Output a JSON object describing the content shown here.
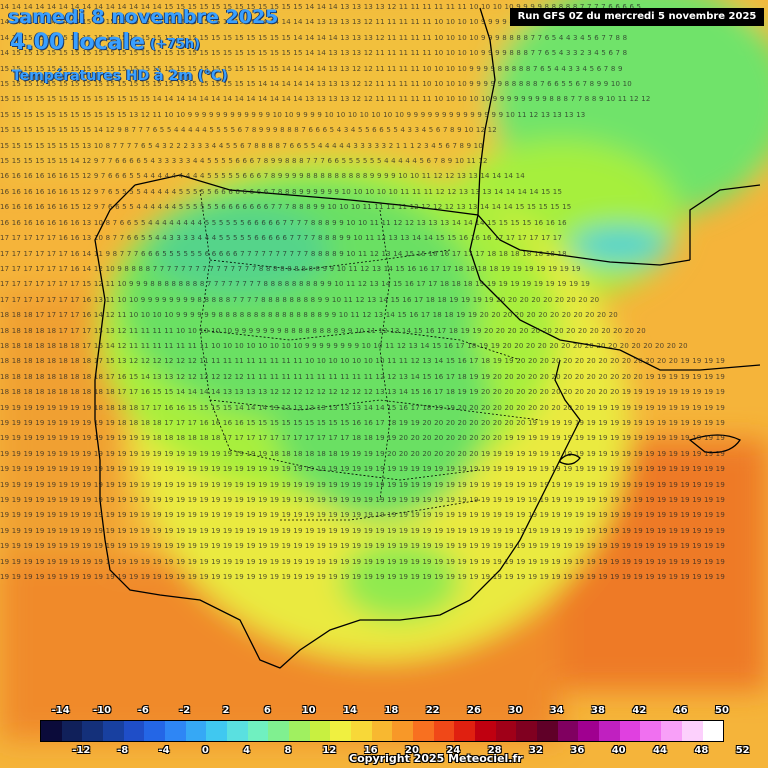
{
  "header": {
    "date": "samedi 8 novembre 2025",
    "time": "4.00 locale",
    "offset": "(+75h)",
    "parameter": "Températures HD à 2m (°C)",
    "run": "Run GFS 0Z du mercredi 5 novembre 2025"
  },
  "legend": {
    "top_labels": [
      "-14",
      "-10",
      "-6",
      "-2",
      "2",
      "6",
      "10",
      "14",
      "18",
      "22",
      "26",
      "30",
      "34",
      "38",
      "42",
      "46",
      "50"
    ],
    "bottom_labels": [
      "-12",
      "-8",
      "-4",
      "0",
      "4",
      "8",
      "12",
      "16",
      "20",
      "24",
      "28",
      "32",
      "36",
      "40",
      "44",
      "48",
      "52"
    ],
    "colors": [
      "#0b0b3a",
      "#10205a",
      "#14307a",
      "#1840a0",
      "#1f4ec8",
      "#2466e6",
      "#2e86f5",
      "#36a8f5",
      "#40c8f0",
      "#5ae0e0",
      "#70f0c0",
      "#80f090",
      "#a0f060",
      "#c8f040",
      "#f0f040",
      "#f8d838",
      "#f8b830",
      "#f89828",
      "#f87020",
      "#f04818",
      "#e02010",
      "#c00010",
      "#a00018",
      "#800020",
      "#600028",
      "#800060",
      "#a00090",
      "#c020c0",
      "#e040e0",
      "#f070f0",
      "#f8a0f8",
      "#fcd0fc",
      "#ffffff"
    ]
  },
  "map_colors": {
    "sea_warm": "#f0a030",
    "sea_hot": "#f07a28",
    "land_cool": "#a6ef3c",
    "land_cold": "#62e06a",
    "land_coldest": "#40c8d8",
    "land_mild": "#f0e040"
  },
  "grid_temps": {
    "rows": [
      "14 14 14 14 14 14 14 14 14 14 14 14 14 14 15 15 15 15 15 15 15 15 15 15 15 15 14 14 14 13 13 13 13 12 11 11 11 11 11 11 10 10 10 10 9 9 9 9 8 8 8 8 8 7 7 7 7 6 6 6 6 5",
      "14 14 14 14 14 14 14 15 15 15 15 15 15 15 15 15 15 15 15 15 15 15 14 14 14 14 14 13 13 13 13 12 11 11 11 11 11 10 10 10 10 9 9 9 9 8 8 8 7 7 5 5 4 4 4 5 5 6 6 7 7 7",
      "14 14 15 15 15 15 15 15 15 15 15 15 15 15 15 15 15 15 15 15 15 15 15 15 15 14 14 14 14 13 13 13 12 11 11 11 11 10 10 10 10 9 9 9 8 8 8 8 7 7 6 5 4 4 3 4 5 6 7 7 8 8",
      "14 15 15 15 15 15 15 15 15 15 15 15 15 15 15 15 15 15 15 15 15 15 15 15 15 15 14 14 13 13 13 12 11 11 11 11 11 10 10 10 10 9 9 9 9 8 8 8 7 7 6 5 4 3 3 2 3 4 5 6 7 8",
      "15 15 15 15 15 15 15 15 15 15 15 15 15 15 15 15 15 15 15 15 15 15 15 15 14 14 14 14 13 13 12 12 11 11 11 11 10 10 10 10 9 9 9 9 8 8 8 8 8 7 6 5 4 4 3 3 4 5 6 7 8 9",
      "15 15 15 15 15 15 15 15 15 15 15 15 15 15 15 15 15 15 15 15 15 15 14 14 14 14 14 13 13 13 12 12 11 11 11 11 10 10 10 10 9 9 9 9 9 8 8 8 8 8 7 6 6 5 5 6 7 8 9 9 10 10",
      "15 15 15 15 15 15 15 15 15 15 15 15 15 14 14 14 14 14 14 14 14 14 14 14 14 14 13 13 13 13 12 12 11 11 11 11 11 10 10 10 10 10 9 9 9 9 9 9 9 9 8 8 8 7 7 8 8 9 10 11 12 12",
      "15 15 15 15 15 15 15 15 15 15 15 13 12 11 10 10 9 9 9 9 9 9 9 9 9 9 9 9 10 10 9 9 9 9 10 10 10 10 10 10 10 9 9 9 9 9 9 9 9 9 9 9 9 9 9 10 11 12 13 13 13 13",
      "15 15 15 15 15 15 15 15 14 12 9 8 7 7 7 6 5 5 4 4 4 4 4 5 5 5 5 6 7 8 9 9 9 8 8 8 7 6 6 6 5 4 3 4 5 5 6 6 5 5 4 3 3 4 5 6 7 8 9 10 12 12",
      "15 15 15 15 15 15 15 13 10 8 7 7 7 7 6 5 4 3 2 2 2 3 3 3 4 4 5 5 6 7 8 8 8 8 7 6 6 5 5 4 4 4 4 4 3 3 3 3 3 2 1 1 1 2 3 4 5 6 7 8 9 10",
      "15 15 15 15 15 15 14 12 9 7 7 6 6 6 6 5 4 3 3 3 3 3 4 4 5 5 5 5 6 6 6 7 8 9 9 8 8 8 7 7 7 6 6 5 5 5 5 5 5 4 4 4 4 4 5 6 7 8 9 10 11 12",
      "16 16 16 16 16 16 15 12 9 7 6 6 6 5 5 4 4 4 4 4 4 4 4 4 5 5 5 5 5 6 6 6 7 8 9 9 9 9 8 8 8 8 8 8 8 8 8 9 9 9 9 10 10 11 12 12 13 13 14 14 14 14",
      "16 16 16 16 16 16 15 12 9 7 6 5 5 5 5 4 4 4 4 4 5 5 5 5 5 6 6 6 6 6 6 6 6 7 8 8 8 9 9 9 9 9 9 10 10 10 10 10 11 11 11 12 12 13 13 13 14 14 14 14 15 15",
      "16 16 16 16 16 16 15 12 9 7 6 6 5 5 4 4 4 4 4 4 5 5 5 5 5 5 6 6 6 6 6 6 6 7 7 7 8 8 8 9 9 10 10 10 11 11 11 11 12 12 12 12 13 13 14 14 14 15 15 15 15 15",
      "16 16 16 16 16 16 16 13 10 8 7 6 6 5 5 4 4 4 4 4 4 4 4 5 5 5 5 5 5 6 6 6 6 6 7 7 7 7 8 8 8 9 9 10 10 11 11 12 12 13 13 13 14 14 14 15 15 15 15 16 16 16",
      "17 17 17 17 17 16 16 13 10 8 7 7 6 6 5 5 4 4 3 3 3 3 4 4 4 5 5 5 5 5 6 6 6 6 6 7 7 7 7 8 8 8 9 9 10 11 12 13 13 14 14 15 15 16 16 16 17 17 17 17 17 17",
      "17 17 17 17 17 17 16 14 11 9 8 7 7 7 6 6 6 5 5 5 5 5 5 6 6 6 6 6 7 7 7 7 7 7 7 7 7 7 8 8 8 8 9 10 11 12 13 14 15 15 16 16 17 17 17 18 18 18 18 18 18 18",
      "17 17 17 17 17 17 16 14 12 10 9 8 8 8 8 7 7 7 7 7 7 7 7 7 7 7 7 7 7 7 8 8 8 8 8 8 8 8 8 9 9 10 11 12 13 14 15 16 16 17 17 18 18 18 18 19 19 19 19 19 19 19",
      "17 17 17 17 17 17 17 15 12 11 10 9 9 9 8 8 8 8 8 8 8 8 7 7 7 7 7 7 7 7 8 8 8 8 8 8 8 8 9 9 10 11 12 13 14 15 16 17 17 18 18 18 19 19 19 19 19 19 19 19 19 19",
      "17 17 17 17 17 17 17 16 13 11 10 10 9 9 9 9 9 9 9 9 8 8 8 8 8 7 7 7 7 8 8 8 8 8 8 8 8 9 9 10 11 12 13 14 15 16 17 18 18 19 19 19 19 20 20 20 20 20 20 20 20 20",
      "18 18 18 17 17 17 17 16 14 12 11 10 10 10 10 9 9 9 9 9 9 8 8 8 8 8 8 8 8 8 8 8 8 8 8 8 9 9 10 11 12 13 14 15 16 17 18 18 19 19 20 20 20 20 20 20 20 20 20 20 20 20",
      "18 18 18 18 18 17 17 17 15 13 12 11 11 11 11 10 10 10 10 10 9 9 9 9 9 9 9 8 8 8 8 8 8 8 8 9 9 10 11 12 13 14 15 16 17 18 19 19 20 20 20 20 20 20 20 20 20 20 20 20 20 20",
      "18 18 18 18 18 18 18 17 16 14 12 11 11 11 11 11 11 11 10 10 10 10 10 10 10 10 9 9 9 9 9 9 9 9 10 10 11 12 13 14 15 16 17 18 19 19 20 20 20 20 20 20 20 20 20 20 20 20 20 20 20 20",
      "18 18 18 18 18 18 18 18 17 15 13 12 12 12 12 12 12 11 11 11 11 11 11 11 11 11 10 10 10 10 10 10 10 11 11 12 13 14 15 16 17 18 19 19 20 20 20 20 20 20 20 20 20 20 20 20 20 20 19 19 19 19",
      "18 18 18 18 18 18 18 18 18 17 16 15 14 13 13 12 12 12 12 12 12 11 11 11 11 11 11 11 11 11 11 11 12 12 13 14 15 16 17 18 19 19 20 20 20 20 20 20 20 20 20 20 20 20 20 19 19 19 19 19 19 19",
      "18 18 18 18 18 18 18 18 18 18 17 17 16 15 15 14 14 14 14 13 13 13 13 12 12 12 12 12 12 12 12 12 13 13 14 15 16 17 18 19 19 20 20 20 20 20 20 20 20 20 20 20 20 19 19 19 19 19 19 19 19 19",
      "19 19 19 19 19 19 19 19 18 18 18 18 17 17 16 16 15 15 15 15 14 14 14 13 13 13 13 13 13 13 13 14 14 15 16 17 18 19 19 20 20 20 20 20 20 20 20 20 20 20 19 19 19 19 19 19 19 19 19 19 19 19",
      "19 19 19 19 19 19 19 19 19 19 18 18 18 18 17 17 17 16 16 16 16 15 15 15 15 15 15 15 15 15 16 16 17 18 19 19 20 20 20 20 20 20 20 20 20 19 19 19 19 19 19 19 19 19 19 19 19 19 19 19 19 19",
      "19 19 19 19 19 19 19 19 19 19 19 19 19 18 18 18 18 18 18 17 17 17 17 17 17 17 17 17 17 17 18 18 19 19 20 20 20 20 20 20 20 20 20 19 19 19 19 19 19 19 19 19 19 19 19 19 19 19 19 19 19 19",
      "19 19 19 19 19 19 19 19 19 19 19 19 19 19 19 19 19 19 19 19 19 19 19 18 18 18 18 18 18 19 19 19 19 20 20 20 20 20 20 20 20 19 19 19 19 19 19 19 19 19 19 19 19 19 19 19 19 19 19 19 19 19",
      "19 19 19 19 19 19 19 19 19 19 19 19 19 19 19 19 19 19 19 19 19 19 19 19 19 19 19 19 19 19 19 19 19 19 19 19 19 19 19 19 19 19 19 19 19 19 19 19 19 19 19 19 19 19 19 19 19 19 19 19 19 19",
      "19 19 19 19 19 19 19 19 19 19 19 19 19 19 19 19 19 19 19 19 19 19 19 19 19 19 19 19 19 19 19 19 19 19 19 19 19 19 19 19 19 19 19 19 19 19 19 19 19 19 19 19 19 19 19 19 19 19 19 19 19 19",
      "19 19 19 19 19 19 19 19 19 19 19 19 19 19 19 19 19 19 19 19 19 19 19 19 19 19 19 19 19 19 19 19 19 19 19 19 19 19 19 19 19 19 19 19 19 19 19 19 19 19 19 19 19 19 19 19 19 19 19 19 19 19",
      "19 19 19 19 19 19 19 19 19 19 19 19 19 19 19 19 19 19 19 19 19 19 19 19 19 19 19 19 19 19 19 19 19 19 19 19 19 19 19 19 19 19 19 19 19 19 19 19 19 19 19 19 19 19 19 19 19 19 19 19 19 19",
      "19 19 19 19 19 19 19 19 19 19 19 19 19 19 19 19 19 19 19 19 19 19 19 19 19 19 19 19 19 19 19 19 19 19 19 19 19 19 19 19 19 19 19 19 19 19 19 19 19 19 19 19 19 19 19 19 19 19 19 19 19 19",
      "19 19 19 19 19 19 19 19 19 19 19 19 19 19 19 19 19 19 19 19 19 19 19 19 19 19 19 19 19 19 19 19 19 19 19 19 19 19 19 19 19 19 19 19 19 19 19 19 19 19 19 19 19 19 19 19 19 19 19 19 19 19",
      "19 19 19 19 19 19 19 19 19 19 19 19 19 19 19 19 19 19 19 19 19 19 19 19 19 19 19 19 19 19 19 19 19 19 19 19 19 19 19 19 19 19 19 19 19 19 19 19 19 19 19 19 19 19 19 19 19 19 19 19 19 19",
      "19 19 19 19 19 19 19 19 19 19 19 19 19 19 19 19 19 19 19 19 19 19 19 19 19 19 19 19 19 19 19 19 19 19 19 19 19 19 19 19 19 19 19 19 19 19 19 19 19 19 19 19 19 19 19 19 19 19 19 19 19 19",
      "19 19 19 19 19 19 19 19 19 19 19 19 19 19 19 19 19 19 19 19 19 19 19 19 19 19 19 19 19 19 19 19 19 19 19 19 19 19 19 19 19 19 19 19 19 19 19 19 19 19 19 19 19 19 19 19 19 19 19 19 19 19"
    ]
  },
  "footer": {
    "copyright": "Copyright 2025 Meteociel.fr"
  }
}
